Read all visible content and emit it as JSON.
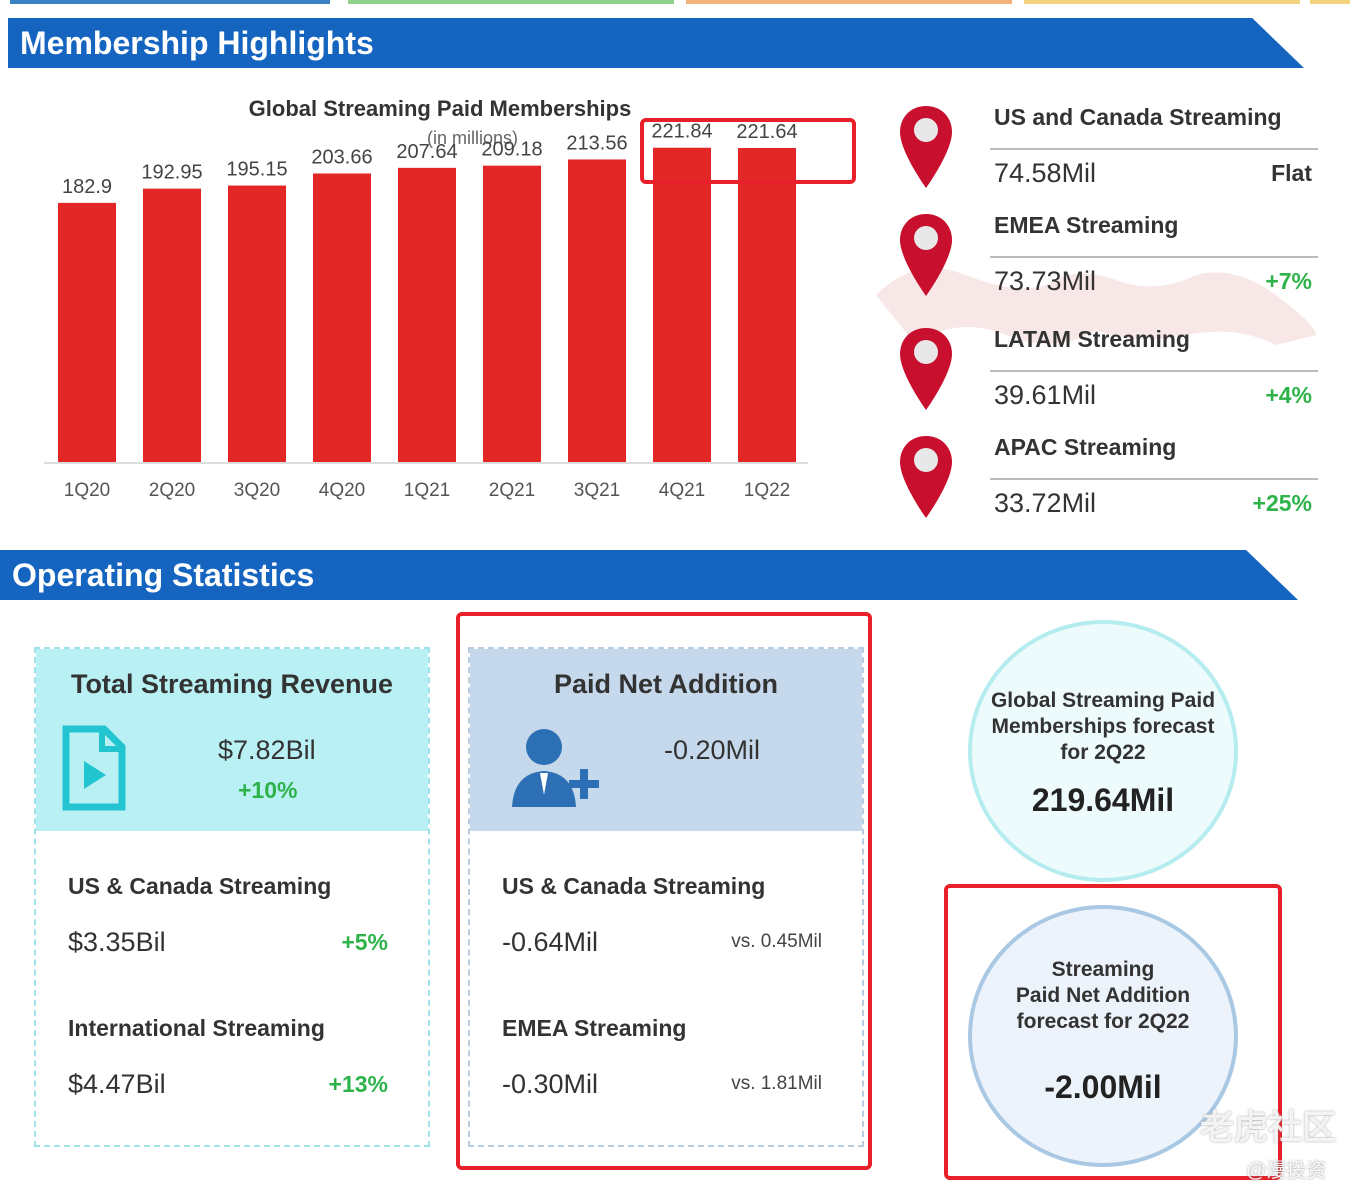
{
  "sections": {
    "membership_title": "Membership Highlights",
    "operating_title": "Operating Statistics"
  },
  "colors": {
    "banner": "#1565c0",
    "bar": "#e32727",
    "positive": "#2db34a",
    "highlight_box": "#e8202a"
  },
  "chart_data": {
    "type": "bar",
    "title": "Global Streaming Paid Memberships",
    "subtitle": "(in millions)",
    "categories": [
      "1Q20",
      "2Q20",
      "3Q20",
      "4Q20",
      "1Q21",
      "2Q21",
      "3Q21",
      "4Q21",
      "1Q22"
    ],
    "values": [
      182.9,
      192.95,
      195.15,
      203.66,
      207.64,
      209.18,
      213.56,
      221.84,
      221.64
    ],
    "value_labels": [
      "182.9",
      "192.95",
      "195.15",
      "203.66",
      "207.64",
      "209.18",
      "213.56",
      "221.84",
      "221.64"
    ],
    "ylim": [
      0,
      240
    ],
    "grid": false,
    "legend": "none",
    "highlighted_categories": [
      "4Q21",
      "1Q22"
    ]
  },
  "regions": [
    {
      "name": "US and Canada Streaming",
      "value": "74.58Mil",
      "change": "Flat",
      "change_color": "#333333",
      "icon": "location-pin-icon"
    },
    {
      "name": "EMEA Streaming",
      "value": "73.73Mil",
      "change": "+7%",
      "change_color": "#2db34a",
      "icon": "location-pin-icon"
    },
    {
      "name": "LATAM Streaming",
      "value": "39.61Mil",
      "change": "+4%",
      "change_color": "#2db34a",
      "icon": "location-pin-icon"
    },
    {
      "name": "APAC Streaming",
      "value": "33.72Mil",
      "change": "+25%",
      "change_color": "#2db34a",
      "icon": "location-pin-icon"
    }
  ],
  "revenue_card": {
    "title": "Total Streaming Revenue",
    "value": "$7.82Bil",
    "change": "+10%",
    "icon": "video-file-icon",
    "rows": [
      {
        "label": "US & Canada Streaming",
        "value": "$3.35Bil",
        "change": "+5%"
      },
      {
        "label": "International Streaming",
        "value": "$4.47Bil",
        "change": "+13%"
      }
    ]
  },
  "net_add_card": {
    "title": "Paid Net Addition",
    "value": "-0.20Mil",
    "icon": "add-user-icon",
    "rows": [
      {
        "label": "US & Canada Streaming",
        "value": "-0.64Mil",
        "compare": "vs. 0.45Mil"
      },
      {
        "label": "EMEA Streaming",
        "value": "-0.30Mil",
        "compare": "vs. 1.81Mil"
      }
    ]
  },
  "forecasts": {
    "memberships": {
      "line1": "Global Streaming Paid",
      "line2": "Memberships forecast",
      "line3": "for 2Q22",
      "value": "219.64Mil"
    },
    "net_addition": {
      "line1": "Streaming",
      "line2": "Paid Net Addition",
      "line3": "forecast for 2Q22",
      "value": "-2.00Mil"
    }
  },
  "watermarks": {
    "main": "老虎社区",
    "sub": "@漫投资"
  }
}
